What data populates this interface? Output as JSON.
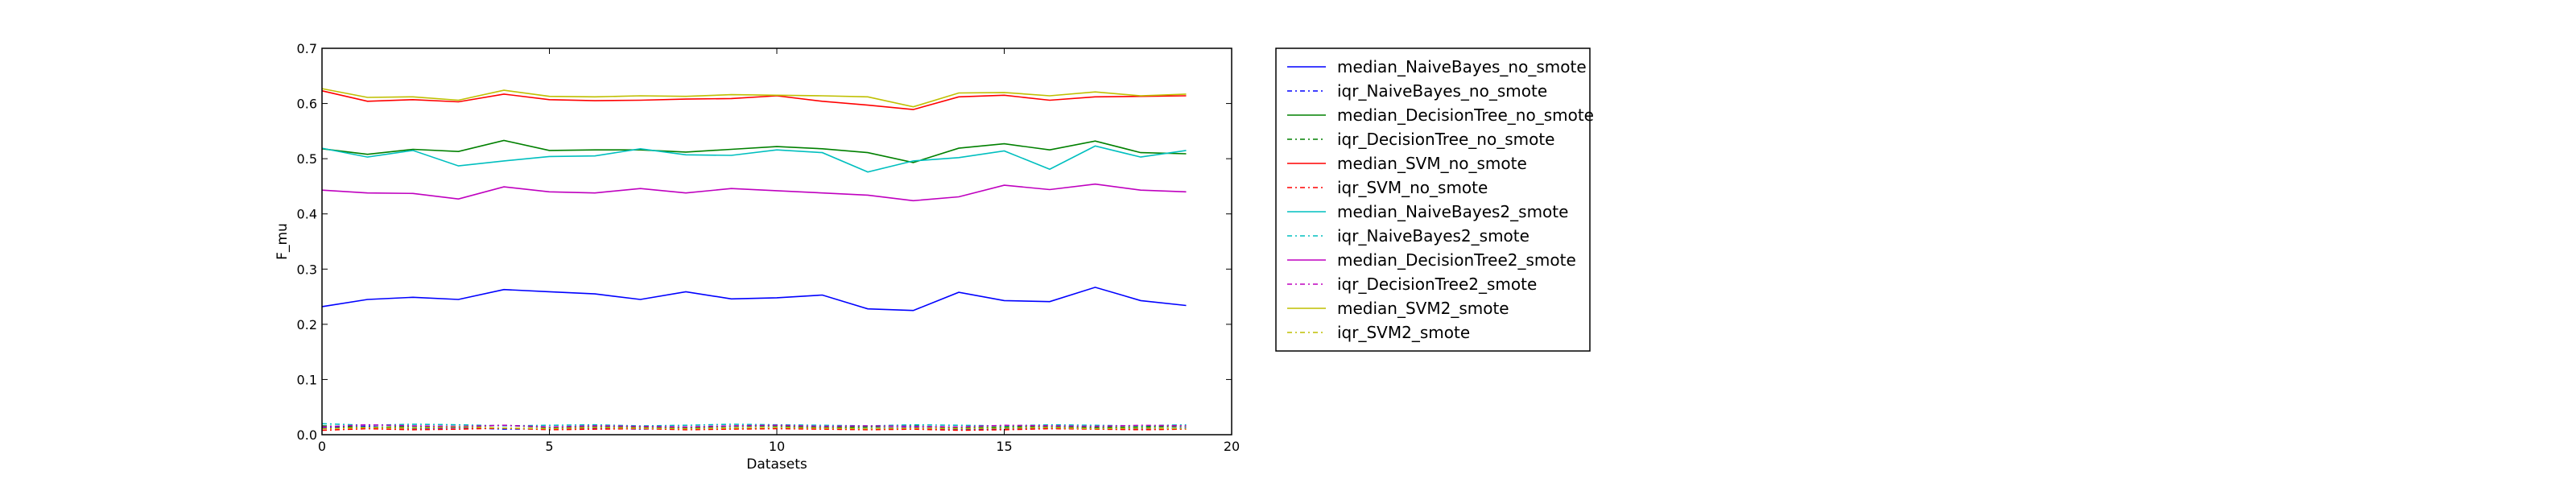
{
  "chart_data": {
    "type": "line",
    "title": "",
    "xlabel": "Datasets",
    "ylabel": "F_mu",
    "xlim": [
      0,
      20
    ],
    "ylim": [
      0.0,
      0.7
    ],
    "x_ticks": [
      0,
      5,
      10,
      15,
      20
    ],
    "y_ticks": [
      0.0,
      0.1,
      0.2,
      0.3,
      0.4,
      0.5,
      0.6,
      0.7
    ],
    "x_tick_labels": [
      "0",
      "5",
      "10",
      "15",
      "20"
    ],
    "y_tick_labels": [
      "0.0",
      "0.1",
      "0.2",
      "0.3",
      "0.4",
      "0.5",
      "0.6",
      "0.7"
    ],
    "grid": false,
    "legend_position": "outside-right",
    "x": [
      0,
      1,
      2,
      3,
      4,
      5,
      6,
      7,
      8,
      9,
      10,
      11,
      12,
      13,
      14,
      15,
      16,
      17,
      18,
      19
    ],
    "series": [
      {
        "name": "median_NaiveBayes_no_smote",
        "color": "#0000ff",
        "dash": "solid",
        "values": [
          0.232,
          0.245,
          0.249,
          0.245,
          0.263,
          0.259,
          0.255,
          0.245,
          0.259,
          0.246,
          0.248,
          0.253,
          0.228,
          0.225,
          0.258,
          0.243,
          0.241,
          0.267,
          0.243,
          0.234
        ]
      },
      {
        "name": "iqr_NaiveBayes_no_smote",
        "color": "#0000ff",
        "dash": "dashdot",
        "values": [
          0.012,
          0.015,
          0.011,
          0.013,
          0.01,
          0.011,
          0.012,
          0.01,
          0.012,
          0.011,
          0.013,
          0.012,
          0.011,
          0.013,
          0.009,
          0.01,
          0.012,
          0.011,
          0.01,
          0.012
        ]
      },
      {
        "name": "median_DecisionTree_no_smote",
        "color": "#008000",
        "dash": "solid",
        "values": [
          0.518,
          0.508,
          0.517,
          0.513,
          0.533,
          0.515,
          0.516,
          0.516,
          0.512,
          0.517,
          0.522,
          0.518,
          0.511,
          0.493,
          0.519,
          0.527,
          0.516,
          0.532,
          0.511,
          0.509
        ]
      },
      {
        "name": "iqr_DecisionTree_no_smote",
        "color": "#008000",
        "dash": "dashdot",
        "values": [
          0.016,
          0.013,
          0.015,
          0.014,
          0.017,
          0.013,
          0.015,
          0.014,
          0.013,
          0.015,
          0.016,
          0.013,
          0.014,
          0.016,
          0.012,
          0.014,
          0.015,
          0.013,
          0.014,
          0.015
        ]
      },
      {
        "name": "median_SVM_no_smote",
        "color": "#ff0000",
        "dash": "solid",
        "values": [
          0.623,
          0.604,
          0.607,
          0.603,
          0.617,
          0.607,
          0.605,
          0.606,
          0.608,
          0.609,
          0.614,
          0.604,
          0.597,
          0.589,
          0.612,
          0.615,
          0.606,
          0.612,
          0.613,
          0.614
        ]
      },
      {
        "name": "iqr_SVM_no_smote",
        "color": "#ff0000",
        "dash": "dashdot",
        "values": [
          0.008,
          0.011,
          0.009,
          0.01,
          0.012,
          0.009,
          0.01,
          0.011,
          0.009,
          0.01,
          0.011,
          0.01,
          0.009,
          0.01,
          0.008,
          0.009,
          0.011,
          0.01,
          0.009,
          0.01
        ]
      },
      {
        "name": "median_NaiveBayes2_smote",
        "color": "#00bfbf",
        "dash": "solid",
        "values": [
          0.519,
          0.503,
          0.515,
          0.487,
          0.496,
          0.504,
          0.505,
          0.518,
          0.507,
          0.506,
          0.516,
          0.511,
          0.476,
          0.496,
          0.502,
          0.514,
          0.481,
          0.523,
          0.503,
          0.515
        ]
      },
      {
        "name": "iqr_NaiveBayes2_smote",
        "color": "#00bfbf",
        "dash": "dashdot",
        "values": [
          0.02,
          0.017,
          0.019,
          0.018,
          0.016,
          0.017,
          0.018,
          0.016,
          0.017,
          0.019,
          0.018,
          0.017,
          0.016,
          0.018,
          0.017,
          0.016,
          0.018,
          0.017,
          0.016,
          0.018
        ]
      },
      {
        "name": "median_DecisionTree2_smote",
        "color": "#bf00bf",
        "dash": "solid",
        "values": [
          0.443,
          0.438,
          0.437,
          0.427,
          0.449,
          0.44,
          0.438,
          0.446,
          0.438,
          0.446,
          0.442,
          0.438,
          0.434,
          0.424,
          0.431,
          0.452,
          0.444,
          0.454,
          0.443,
          0.44
        ]
      },
      {
        "name": "iqr_DecisionTree2_smote",
        "color": "#bf00bf",
        "dash": "dashdot",
        "values": [
          0.014,
          0.018,
          0.016,
          0.015,
          0.017,
          0.014,
          0.016,
          0.015,
          0.014,
          0.016,
          0.017,
          0.015,
          0.016,
          0.015,
          0.014,
          0.017,
          0.016,
          0.015,
          0.017,
          0.016
        ]
      },
      {
        "name": "median_SVM2_smote",
        "color": "#bfbf00",
        "dash": "solid",
        "values": [
          0.627,
          0.611,
          0.612,
          0.606,
          0.624,
          0.613,
          0.612,
          0.614,
          0.613,
          0.616,
          0.615,
          0.614,
          0.612,
          0.594,
          0.619,
          0.62,
          0.614,
          0.621,
          0.614,
          0.617
        ]
      },
      {
        "name": "iqr_SVM2_smote",
        "color": "#bfbf00",
        "dash": "dashdot",
        "values": [
          0.011,
          0.013,
          0.012,
          0.014,
          0.012,
          0.011,
          0.013,
          0.012,
          0.011,
          0.012,
          0.013,
          0.012,
          0.011,
          0.012,
          0.011,
          0.012,
          0.013,
          0.011,
          0.012,
          0.011
        ]
      }
    ]
  }
}
